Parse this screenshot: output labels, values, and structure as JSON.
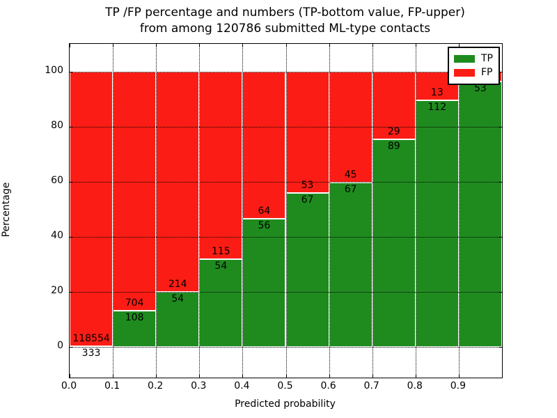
{
  "figure": {
    "title_line1": "TP /FP percentage and numbers (TP-bottom value, FP-upper)",
    "title_line2": "from among 120786 submitted ML-type contacts"
  },
  "chart_data": {
    "type": "bar",
    "stacked": true,
    "title": "TP /FP percentage and numbers (TP-bottom value, FP-upper)\nfrom among 120786 submitted ML-type contacts",
    "xlabel": "Predicted probability",
    "ylabel": "Percentage",
    "categories": [
      "0.0-0.1",
      "0.1-0.2",
      "0.2-0.3",
      "0.3-0.4",
      "0.4-0.5",
      "0.5-0.6",
      "0.6-0.7",
      "0.7-0.8",
      "0.8-0.9",
      "0.9-1.0"
    ],
    "x_tick_labels": [
      "0.0",
      "0.1",
      "0.2",
      "0.3",
      "0.4",
      "0.5",
      "0.6",
      "0.7",
      "0.8",
      "0.9"
    ],
    "y_ticks": [
      0,
      20,
      40,
      60,
      80,
      100
    ],
    "y_tick_labels": [
      "0",
      "20",
      "40",
      "60",
      "80",
      "100"
    ],
    "xlim": [
      0.0,
      1.0
    ],
    "ylim": [
      -11,
      110
    ],
    "grid": true,
    "series": [
      {
        "name": "TP",
        "color": "#1f8b1f",
        "counts": [
          333,
          108,
          54,
          54,
          56,
          67,
          67,
          89,
          112,
          53
        ]
      },
      {
        "name": "FP",
        "color": "#fb1d15",
        "counts": [
          118554,
          704,
          214,
          115,
          64,
          53,
          45,
          29,
          13,
          null
        ]
      }
    ],
    "tp_percent": [
      0.28,
      13.3,
      20.15,
      31.95,
      46.67,
      55.83,
      59.82,
      75.42,
      89.6,
      96.36
    ],
    "bar_labels": {
      "tp": [
        "333",
        "108",
        "54",
        "54",
        "56",
        "67",
        "67",
        "89",
        "112",
        "53"
      ],
      "fp": [
        "118554",
        "704",
        "214",
        "115",
        "64",
        "53",
        "45",
        "29",
        "13",
        ""
      ]
    },
    "legend": {
      "position": "upper right",
      "entries": [
        {
          "label": "TP",
          "color": "#1f8b1f"
        },
        {
          "label": "FP",
          "color": "#fb1d15"
        }
      ]
    }
  }
}
